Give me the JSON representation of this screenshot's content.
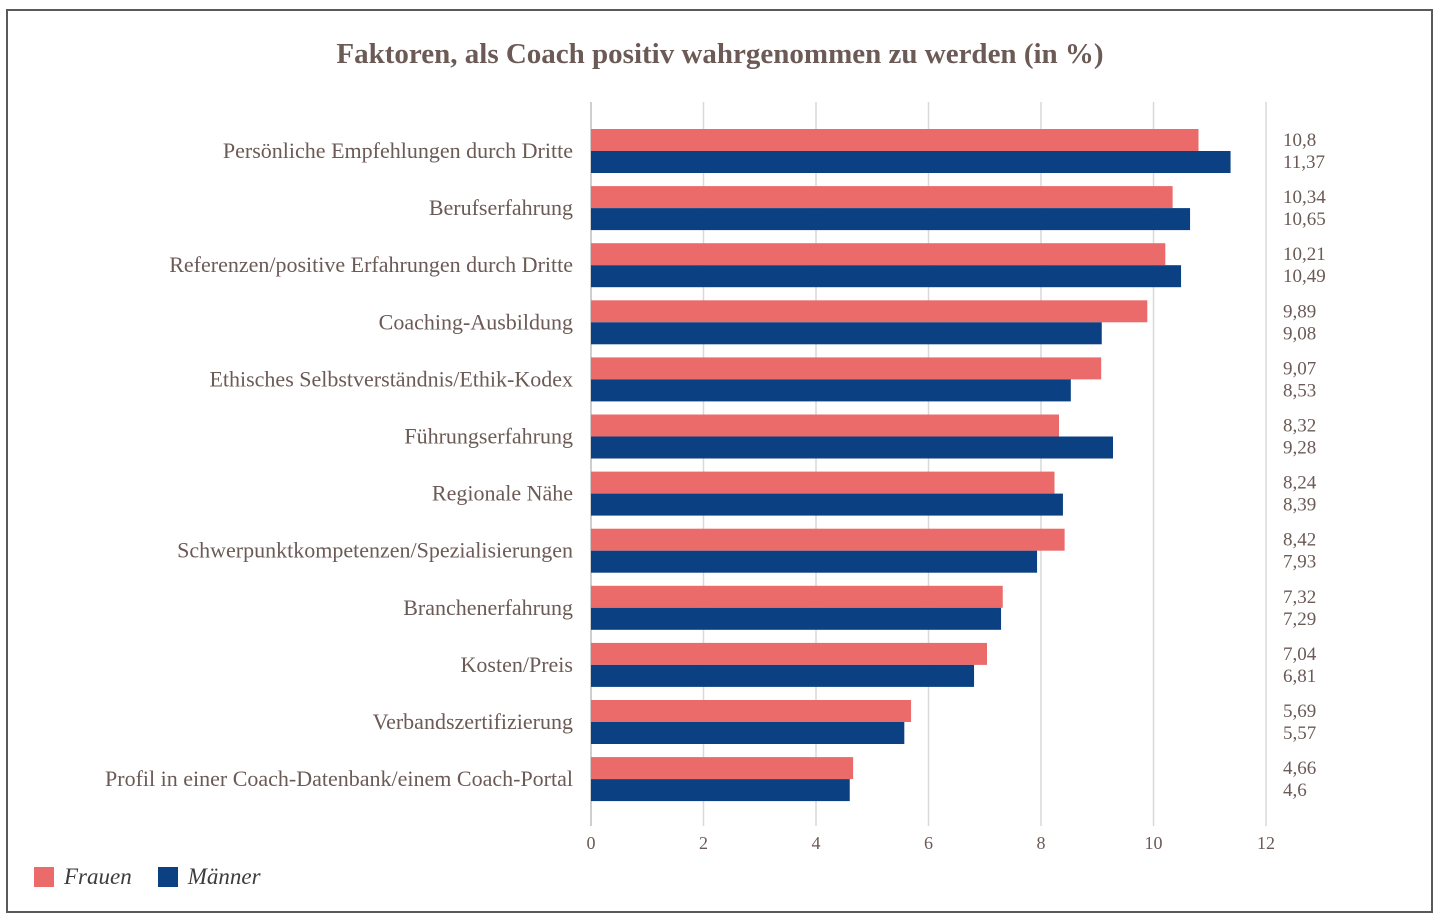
{
  "chart_data": {
    "type": "bar",
    "orientation": "horizontal",
    "title": "Faktoren, als Coach positiv wahrgenommen zu werden (in %)",
    "categories": [
      "Persönliche Empfehlungen durch Dritte",
      "Berufserfahrung",
      "Referenzen/positive Erfahrungen durch Dritte",
      "Coaching-Ausbildung",
      "Ethisches Selbstverständnis/Ethik-Kodex",
      "Führungserfahrung",
      "Regionale Nähe",
      "Schwerpunktkompetenzen/Spezialisierungen",
      "Branchenerfahrung",
      "Kosten/Preis",
      "Verbandszertifizierung",
      "Profil in einer Coach-Datenbank/einem Coach-Portal"
    ],
    "series": [
      {
        "name": "Frauen",
        "color": "#eb6b6b",
        "values": [
          10.8,
          10.34,
          10.21,
          9.89,
          9.07,
          8.32,
          8.24,
          8.42,
          7.32,
          7.04,
          5.69,
          4.66
        ],
        "labels": [
          "10,8",
          "10,34",
          "10,21",
          "9,89",
          "9,07",
          "8,32",
          "8,24",
          "8,42",
          "7,32",
          "7,04",
          "5,69",
          "4,66"
        ]
      },
      {
        "name": "Männer",
        "color": "#0b4183",
        "values": [
          11.37,
          10.65,
          10.49,
          9.08,
          8.53,
          9.28,
          8.39,
          7.93,
          7.29,
          6.81,
          5.57,
          4.6
        ],
        "labels": [
          "11,37",
          "10,65",
          "10,49",
          "9,08",
          "8,53",
          "9,28",
          "8,39",
          "7,93",
          "7,29",
          "6,81",
          "5,57",
          "4,6"
        ]
      }
    ],
    "xlim": [
      0,
      12
    ],
    "xticks": [
      "0",
      "2",
      "4",
      "6",
      "8",
      "10",
      "12"
    ],
    "grid": "vertical",
    "legend_placement": "bottom-left"
  }
}
